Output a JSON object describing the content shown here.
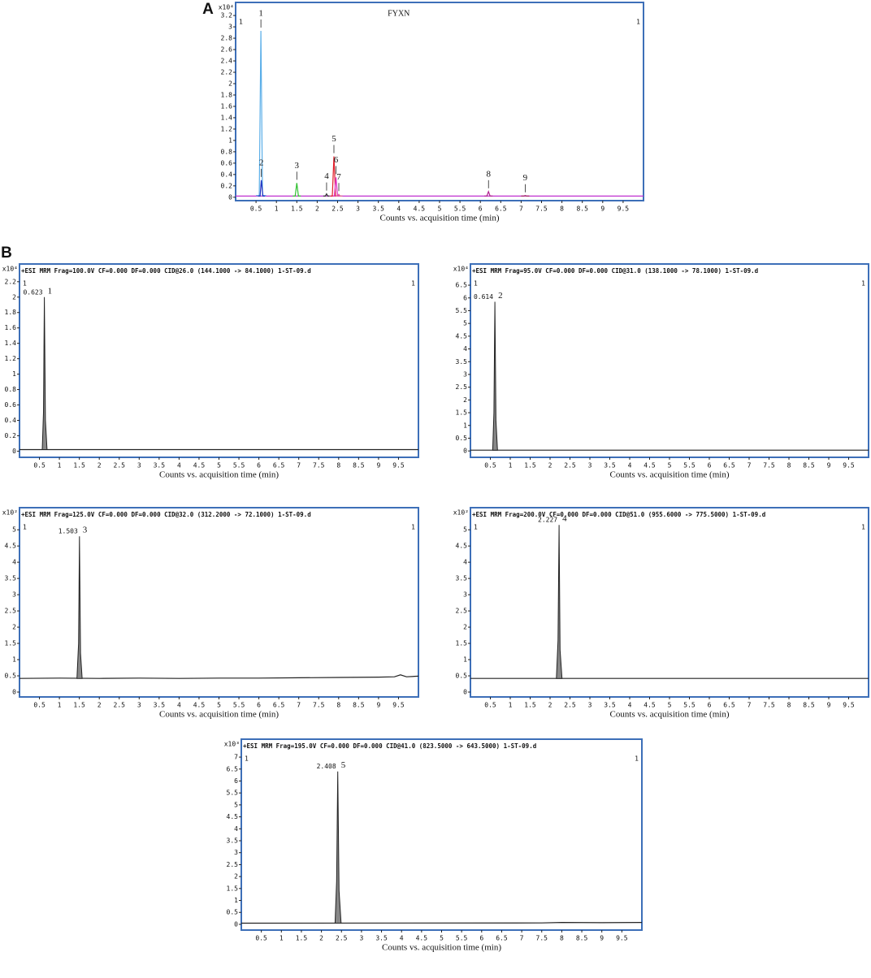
{
  "panel_labels": {
    "a": "A",
    "b": "B"
  },
  "chart_data": [
    {
      "type": "line",
      "title": "FYXN",
      "scale_label": "x10⁴",
      "corner_label": "1",
      "x_label": "Counts vs. acquisition time (min)",
      "xlim": [
        0,
        10
      ],
      "xticks": [
        0.5,
        1,
        1.5,
        2,
        2.5,
        3,
        3.5,
        4,
        4.5,
        5,
        5.5,
        6,
        6.5,
        7,
        7.5,
        8,
        8.5,
        9,
        9.5
      ],
      "ylim": [
        -0.06,
        3.43
      ],
      "yticks": [
        0,
        0.2,
        0.4,
        0.6,
        0.8,
        1,
        1.2,
        1.4,
        1.6,
        1.8,
        2,
        2.2,
        2.4,
        2.6,
        2.8,
        3,
        3.2
      ],
      "border_color": "#3d6fb8",
      "series": [
        {
          "color": "#c030d0",
          "x": [
            0,
            10
          ],
          "values": [
            0.02,
            0.02
          ]
        },
        {
          "color": "#5aaee8",
          "label": "1",
          "x": [
            0.5,
            0.58,
            0.62,
            0.66,
            0.75
          ],
          "values": [
            0.03,
            0.03,
            2.93,
            0.03,
            0.03
          ]
        },
        {
          "color": "#2030c0",
          "label": "2",
          "x": [
            0.55,
            0.6,
            0.63,
            0.67,
            0.72
          ],
          "values": [
            0.02,
            0.02,
            0.3,
            0.02,
            0.02
          ]
        },
        {
          "color": "#30c030",
          "label": "3",
          "x": [
            1.4,
            1.46,
            1.5,
            1.54,
            1.6
          ],
          "values": [
            0.02,
            0.02,
            0.25,
            0.02,
            0.02
          ]
        },
        {
          "color": "#333333",
          "label": "4",
          "x": [
            2.15,
            2.2,
            2.23,
            2.26,
            2.3
          ],
          "values": [
            0.02,
            0.02,
            0.06,
            0.02,
            0.02
          ]
        },
        {
          "color": "#e01e2a",
          "label": "5",
          "x": [
            2.32,
            2.37,
            2.41,
            2.45,
            2.5
          ],
          "values": [
            0.02,
            0.02,
            0.72,
            0.02,
            0.02
          ]
        },
        {
          "color": "#e030c8",
          "label": "6",
          "x": [
            2.38,
            2.42,
            2.46,
            2.5,
            2.56
          ],
          "values": [
            0.02,
            0.02,
            0.35,
            0.02,
            0.02
          ]
        },
        {
          "color": "#e06090",
          "label": "7",
          "x": [
            2.45,
            2.5,
            2.53,
            2.56,
            2.62
          ],
          "values": [
            0.02,
            0.02,
            0.05,
            0.02,
            0.02
          ]
        },
        {
          "color": "#b02090",
          "label": "8",
          "x": [
            6.1,
            6.16,
            6.2,
            6.24,
            6.3
          ],
          "values": [
            0.02,
            0.02,
            0.1,
            0.02,
            0.02
          ]
        },
        {
          "color": "#a02060",
          "label": "9",
          "x": [
            7.0,
            7.06,
            7.1,
            7.14,
            7.2
          ],
          "values": [
            0.02,
            0.02,
            0.03,
            0.02,
            0.02
          ]
        }
      ]
    },
    {
      "type": "line",
      "header": "+ESI MRM Frag=100.0V CF=0.000 DF=0.000 CID@26.0 (144.1000 -> 84.1000) 1-ST-09.d",
      "scale_label": "x10⁴",
      "corner_label": "1",
      "x_label": "Counts vs. acquisition time (min)",
      "xlim": [
        0,
        10
      ],
      "xticks": [
        0.5,
        1,
        1.5,
        2,
        2.5,
        3,
        3.5,
        4,
        4.5,
        5,
        5.5,
        6,
        6.5,
        7,
        7.5,
        8,
        8.5,
        9,
        9.5
      ],
      "ylim": [
        -0.08,
        2.43
      ],
      "yticks": [
        0,
        0.2,
        0.4,
        0.6,
        0.8,
        1,
        1.2,
        1.4,
        1.6,
        1.8,
        2,
        2.2
      ],
      "border_color": "#3d6fb8",
      "series": [
        {
          "color": "#222222",
          "x": [
            0,
            10
          ],
          "values": [
            0.02,
            0.02
          ]
        },
        {
          "color": "#222222",
          "fill": "#888888",
          "rt_label": "0.623",
          "label": "1",
          "x": [
            0.57,
            0.6,
            0.623,
            0.65,
            0.69
          ],
          "values": [
            0.02,
            0.5,
            2.0,
            0.4,
            0.02
          ]
        }
      ]
    },
    {
      "type": "line",
      "header": "+ESI MRM Frag=95.0V CF=0.000 DF=0.000 CID@31.0 (138.1000 -> 78.1000) 1-ST-09.d",
      "scale_label": "x10⁴",
      "corner_label": "1",
      "x_label": "Counts vs. acquisition time (min)",
      "xlim": [
        0,
        10
      ],
      "xticks": [
        0.5,
        1,
        1.5,
        2,
        2.5,
        3,
        3.5,
        4,
        4.5,
        5,
        5.5,
        6,
        6.5,
        7,
        7.5,
        8,
        8.5,
        9,
        9.5
      ],
      "ylim": [
        -0.25,
        7.33
      ],
      "yticks": [
        0,
        0.5,
        1,
        1.5,
        2,
        2.5,
        3,
        3.5,
        4,
        4.5,
        5,
        5.5,
        6,
        6.5
      ],
      "border_color": "#3d6fb8",
      "series": [
        {
          "color": "#222222",
          "x": [
            0,
            10
          ],
          "values": [
            0.03,
            0.03
          ]
        },
        {
          "color": "#222222",
          "fill": "#888888",
          "rt_label": "0.614",
          "label": "2",
          "x": [
            0.56,
            0.59,
            0.614,
            0.64,
            0.68
          ],
          "values": [
            0.03,
            1.5,
            5.85,
            1.2,
            0.03
          ]
        }
      ]
    },
    {
      "type": "line",
      "header": "+ESI MRM Frag=125.0V CF=0.000 DF=0.000 CID@32.0 (312.2000 -> 72.1000) 1-ST-09.d",
      "scale_label": "x10²",
      "corner_label": "1",
      "x_label": "Counts vs. acquisition time (min)",
      "xlim": [
        0,
        10
      ],
      "xticks": [
        0.5,
        1,
        1.5,
        2,
        2.5,
        3,
        3.5,
        4,
        4.5,
        5,
        5.5,
        6,
        6.5,
        7,
        7.5,
        8,
        8.5,
        9,
        9.5
      ],
      "ylim": [
        -0.15,
        5.68
      ],
      "yticks": [
        0,
        0.5,
        1,
        1.5,
        2,
        2.5,
        3,
        3.5,
        4,
        4.5,
        5
      ],
      "border_color": "#3d6fb8",
      "series": [
        {
          "color": "#222222",
          "x": [
            0,
            1,
            2,
            3,
            4,
            5,
            6,
            7,
            8,
            9,
            9.4,
            9.55,
            9.7,
            10
          ],
          "values": [
            0.42,
            0.43,
            0.42,
            0.43,
            0.42,
            0.43,
            0.43,
            0.44,
            0.45,
            0.46,
            0.47,
            0.53,
            0.47,
            0.49
          ]
        },
        {
          "color": "#222222",
          "fill": "#888888",
          "rt_label": "1.503",
          "label": "3",
          "x": [
            1.44,
            1.48,
            1.503,
            1.53,
            1.57
          ],
          "values": [
            0.42,
            1.5,
            4.8,
            1.2,
            0.42
          ]
        }
      ]
    },
    {
      "type": "line",
      "header": "+ESI MRM Frag=200.0V CF=0.000 DF=0.000 CID@51.0 (955.6000 -> 775.5000) 1-ST-09.d",
      "scale_label": "x10²",
      "corner_label": "1",
      "x_label": "Counts vs. acquisition time (min)",
      "xlim": [
        0,
        10
      ],
      "xticks": [
        0.5,
        1,
        1.5,
        2,
        2.5,
        3,
        3.5,
        4,
        4.5,
        5,
        5.5,
        6,
        6.5,
        7,
        7.5,
        8,
        8.5,
        9,
        9.5
      ],
      "ylim": [
        -0.15,
        5.68
      ],
      "yticks": [
        0,
        0.5,
        1,
        1.5,
        2,
        2.5,
        3,
        3.5,
        4,
        4.5,
        5
      ],
      "border_color": "#3d6fb8",
      "series": [
        {
          "color": "#222222",
          "x": [
            0,
            10
          ],
          "values": [
            0.42,
            0.42
          ]
        },
        {
          "color": "#222222",
          "fill": "#888888",
          "rt_label": "2.227",
          "label": "4",
          "x": [
            2.16,
            2.2,
            2.227,
            2.25,
            2.3
          ],
          "values": [
            0.42,
            1.6,
            5.15,
            1.3,
            0.42
          ]
        }
      ]
    },
    {
      "type": "line",
      "header": "+ESI MRM Frag=195.0V CF=0.000 DF=0.000 CID@41.0 (823.5000 -> 643.5000) 1-ST-09.d",
      "scale_label": "x10³",
      "corner_label": "1",
      "x_label": "Counts vs. acquisition time (min)",
      "xlim": [
        0,
        10
      ],
      "xticks": [
        0.5,
        1,
        1.5,
        2,
        2.5,
        3,
        3.5,
        4,
        4.5,
        5,
        5.5,
        6,
        6.5,
        7,
        7.5,
        8,
        8.5,
        9,
        9.5
      ],
      "ylim": [
        -0.24,
        7.75
      ],
      "yticks": [
        0,
        0.5,
        1,
        1.5,
        2,
        2.5,
        3,
        3.5,
        4,
        4.5,
        5,
        5.5,
        6,
        6.5,
        7
      ],
      "border_color": "#3d6fb8",
      "series": [
        {
          "color": "#222222",
          "x": [
            0,
            7.5,
            8,
            9,
            10
          ],
          "values": [
            0.05,
            0.06,
            0.08,
            0.07,
            0.08
          ]
        },
        {
          "color": "#222222",
          "fill": "#888888",
          "rt_label": "2.408",
          "label": "5",
          "x": [
            2.34,
            2.38,
            2.408,
            2.44,
            2.49
          ],
          "values": [
            0.05,
            1.8,
            6.4,
            1.4,
            0.05
          ]
        }
      ]
    }
  ]
}
